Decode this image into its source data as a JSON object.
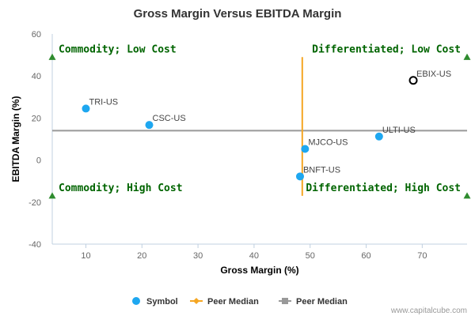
{
  "chart_data": {
    "type": "scatter",
    "title": "Gross Margin Versus EBITDA Margin",
    "xlabel": "Gross Margin (%)",
    "ylabel": "EBITDA Margin (%)",
    "xlim": [
      4,
      78
    ],
    "ylim": [
      -40,
      60
    ],
    "xticks": [
      10,
      20,
      30,
      40,
      50,
      60,
      70
    ],
    "yticks": [
      -40,
      -20,
      0,
      20,
      40,
      60
    ],
    "grid": false,
    "points": [
      {
        "label": "TRI-US",
        "x": 10.0,
        "y": 24.5,
        "highlight": false
      },
      {
        "label": "CSC-US",
        "x": 21.3,
        "y": 16.7,
        "highlight": false
      },
      {
        "label": "MJCO-US",
        "x": 49.1,
        "y": 5.3,
        "highlight": false
      },
      {
        "label": "BNFT-US",
        "x": 48.2,
        "y": -7.8,
        "highlight": false
      },
      {
        "label": "ULTI-US",
        "x": 62.3,
        "y": 11.2,
        "highlight": false
      },
      {
        "label": "EBIX-US",
        "x": 68.4,
        "y": 37.9,
        "highlight": true
      }
    ],
    "median_x": {
      "value": 48.6,
      "y_from": -17,
      "y_to": 49,
      "color": "#f5a623"
    },
    "median_y": {
      "value": 14.0,
      "x_from": 4,
      "x_to": 78,
      "color": "#999999"
    },
    "quadrants": [
      {
        "text": "Commodity; Low Cost",
        "corner": "top-left",
        "marker_x": 4,
        "marker_y": 49
      },
      {
        "text": "Differentiated; Low Cost",
        "corner": "top-right",
        "marker_x": 78,
        "marker_y": 49
      },
      {
        "text": "Commodity; High Cost",
        "corner": "bottom-left",
        "marker_x": 4,
        "marker_y": -17
      },
      {
        "text": "Differentiated; High Cost",
        "corner": "bottom-right",
        "marker_x": 78,
        "marker_y": -17
      }
    ],
    "legend": {
      "placement": "bottom",
      "items": [
        {
          "label": "Symbol",
          "kind": "circle",
          "color": "#1ea7f0"
        },
        {
          "label": "Peer Median",
          "kind": "line-diamond",
          "color": "#f5a623"
        },
        {
          "label": "Peer Median",
          "kind": "line-square",
          "color": "#999999"
        }
      ]
    },
    "colors": {
      "point": "#1ea7f0",
      "quadrant": "#006400",
      "axis": "#c0d0e0"
    }
  },
  "credit": "www.capitalcube.com"
}
